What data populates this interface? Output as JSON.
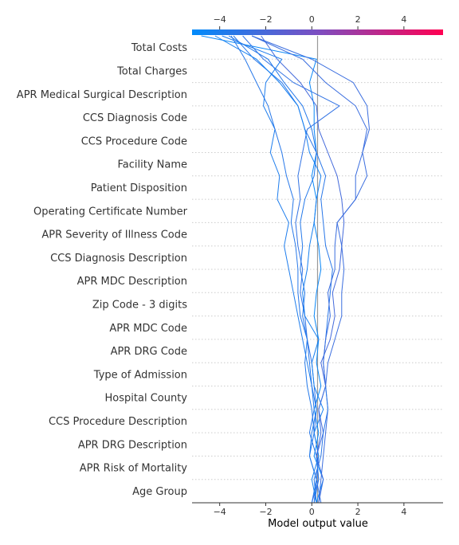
{
  "chart_data": {
    "type": "line",
    "title": "",
    "xlabel": "Model output value",
    "ylabel": "",
    "xlim": [
      -5.2,
      5.7
    ],
    "xticks": [
      -4,
      -2,
      0,
      2,
      4
    ],
    "xtick_labels": [
      "−4",
      "−2",
      "0",
      "2",
      "4"
    ],
    "base_value": 0.25,
    "colorbar": {
      "low_color": "#008bfb",
      "mid_color": "#7c4fc1",
      "high_color": "#ff0052",
      "range": [
        -5.2,
        5.7
      ]
    },
    "features": [
      "Total Costs",
      "Total Charges",
      "APR Medical Surgical Description",
      "CCS Diagnosis Code",
      "CCS Procedure Code",
      "Facility Name",
      "Patient Disposition",
      "Operating Certificate Number",
      "APR Severity of Illness Code",
      "CCS Diagnosis Description",
      "APR MDC Description",
      "Zip Code - 3 digits",
      "APR MDC Code",
      "APR DRG Code",
      "Type of Admission",
      "Hospital County",
      "CCS Procedure Description",
      "APR DRG Description",
      "APR Risk of Mortality",
      "Age Group"
    ],
    "series": [
      {
        "values": [
          0.2,
          0.5,
          0.1,
          0.3,
          0.1,
          0.4,
          0.2,
          0.3,
          0.1,
          0.2,
          0.4,
          0.3,
          0.1,
          0.2,
          0.0,
          0.2,
          0.1,
          0.1,
          -0.1,
          0.2,
          -4.8
        ]
      },
      {
        "values": [
          0.4,
          0.2,
          0.3,
          0.1,
          0.2,
          0.1,
          0.0,
          -0.2,
          -0.3,
          -0.5,
          -0.4,
          -0.6,
          -0.7,
          -0.5,
          -0.6,
          -0.4,
          -0.2,
          1.2,
          -0.8,
          -2.1,
          -3.0
        ]
      },
      {
        "values": [
          0.0,
          0.3,
          0.2,
          0.5,
          0.3,
          0.6,
          0.4,
          0.8,
          1.0,
          0.9,
          1.2,
          1.3,
          1.4,
          1.3,
          1.1,
          0.7,
          0.3,
          0.2,
          -0.5,
          -1.5,
          -2.2
        ]
      },
      {
        "values": [
          0.3,
          0.4,
          0.5,
          0.6,
          0.7,
          0.6,
          0.7,
          1.0,
          1.3,
          1.3,
          1.4,
          1.3,
          1.1,
          1.9,
          2.4,
          2.2,
          2.4,
          1.9,
          0.6,
          -0.4,
          -2.6
        ]
      },
      {
        "values": [
          0.2,
          0.1,
          0.4,
          0.5,
          0.7,
          0.6,
          0.5,
          0.6,
          0.7,
          0.8,
          0.9,
          0.6,
          0.5,
          0.4,
          0.6,
          0.2,
          -0.3,
          -0.6,
          -1.3,
          -2.5,
          -3.4
        ]
      },
      {
        "values": [
          0.1,
          0.2,
          -0.1,
          0.0,
          0.2,
          0.0,
          -0.2,
          -0.4,
          -0.6,
          -0.8,
          -1.0,
          -1.2,
          -1.0,
          -1.5,
          -1.4,
          -1.8,
          -1.6,
          -2.1,
          -2.0,
          -1.3,
          -3.9
        ]
      },
      {
        "values": [
          0.2,
          0.0,
          0.3,
          0.1,
          0.5,
          0.1,
          0.0,
          0.3,
          -0.3,
          -0.4,
          -0.2,
          -0.1,
          0.1,
          0.2,
          0.4,
          -0.1,
          -0.3,
          -0.6,
          -1.4,
          -2.4,
          -4.2
        ]
      },
      {
        "values": [
          0.1,
          0.3,
          0.2,
          -0.1,
          0.1,
          0.0,
          -0.1,
          -0.2,
          -0.5,
          -0.6,
          -0.6,
          -0.7,
          -0.9,
          -0.8,
          -1.1,
          -1.3,
          -1.6,
          -1.9,
          -2.4,
          -2.9,
          -3.5
        ]
      },
      {
        "values": [
          0.0,
          0.2,
          -0.1,
          0.1,
          0.0,
          -0.2,
          -0.3,
          -0.2,
          -0.4,
          -0.3,
          -0.5,
          -0.4,
          -0.5,
          -0.3,
          0.1,
          0.2,
          0.0,
          -0.4,
          -1.2,
          -1.9,
          -3.6
        ]
      },
      {
        "values": [
          0.3,
          0.5,
          0.2,
          0.4,
          0.3,
          0.6,
          0.5,
          0.6,
          0.8,
          0.7,
          1.0,
          1.0,
          1.1,
          1.9,
          1.9,
          2.2,
          2.5,
          2.4,
          1.8,
          0.0,
          -2.6
        ]
      }
    ]
  }
}
